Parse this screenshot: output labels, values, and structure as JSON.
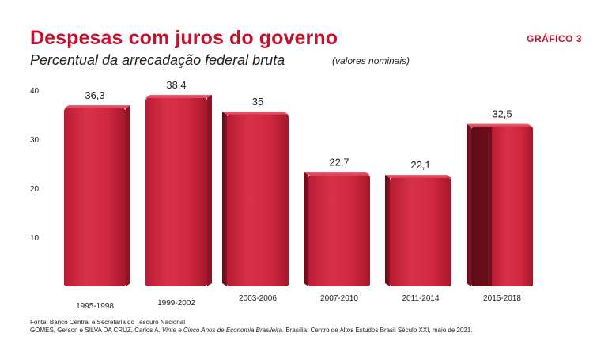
{
  "header": {
    "title": "Despesas com juros do governo",
    "badge": "GRÁFICO 3",
    "subtitle": "Percentual da arrecadação federal bruta",
    "note": "(valores nominais)"
  },
  "source": {
    "line1": "Fonte: Banco Central e Secretaria do Tesouro Nacional",
    "line2_prefix": "GOMES, Gerson e SILVA DA CRUZ, Carlos A. ",
    "line2_title": "Vinte e Cinco Anos de Economia Brasileira",
    "line2_suffix": ". Brasília: Centro de Altos Estudos Brasil Século XXI, maio de 2021."
  },
  "colors": {
    "bar_main": "#d0283f",
    "bar_light": "#e2485d",
    "bar_dark": "#6e0f1d",
    "title_red": "#c8102e"
  },
  "chart_data": {
    "type": "bar",
    "title": "Despesas com juros do governo",
    "subtitle": "Percentual da arrecadação federal bruta",
    "xlabel": "",
    "ylabel": "",
    "ylim": [
      0,
      40
    ],
    "yticks": [
      10,
      20,
      30,
      40
    ],
    "grid": false,
    "categories": [
      "1995-1998",
      "1999-2002",
      "2003-2006",
      "2007-2010",
      "2011-2014",
      "2015-2018"
    ],
    "values": [
      36.3,
      38.4,
      35,
      22.7,
      22.1,
      32.5
    ],
    "value_labels": [
      "36,3",
      "38,4",
      "35",
      "22,7",
      "22,1",
      "32,5"
    ]
  }
}
